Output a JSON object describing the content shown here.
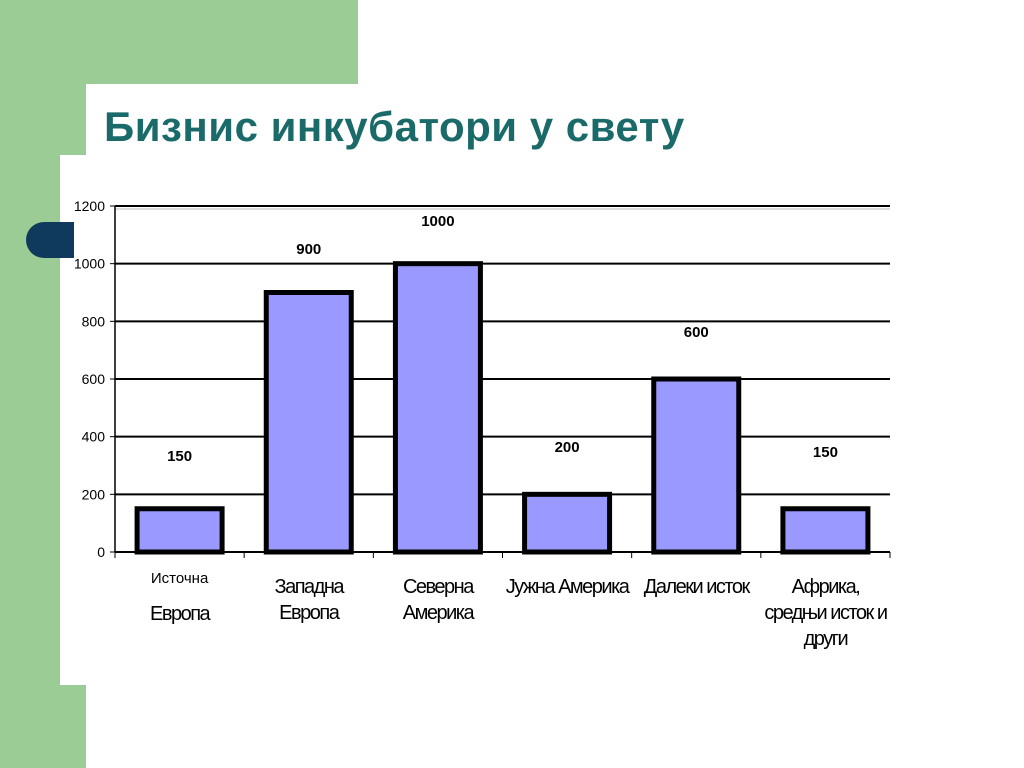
{
  "slide": {
    "title": "Бизнис инкубатори у свету",
    "colors": {
      "green": "#9bcc96",
      "navy": "#0f3a5e",
      "title": "#1b6a6a",
      "bar_fill": "#9999ff",
      "bar_edge": "#000000"
    }
  },
  "chart_data": {
    "type": "bar",
    "title": "",
    "xlabel": "",
    "ylabel": "",
    "ylim": [
      0,
      1200
    ],
    "yticks": [
      0,
      200,
      400,
      600,
      800,
      1000,
      1200
    ],
    "grid": true,
    "legend": "none",
    "categories": [
      [
        "Источна",
        "Европа"
      ],
      [
        "Западна",
        "Европа"
      ],
      [
        "Северна",
        "Америка"
      ],
      [
        "Јужна Америка"
      ],
      [
        "Далеки исток"
      ],
      [
        "Африка,",
        "средњи исток и",
        "други"
      ]
    ],
    "values": [
      150,
      900,
      1000,
      200,
      600,
      150
    ],
    "data_labels": [
      "150",
      "900",
      "1000",
      "200",
      "600",
      "150"
    ]
  }
}
